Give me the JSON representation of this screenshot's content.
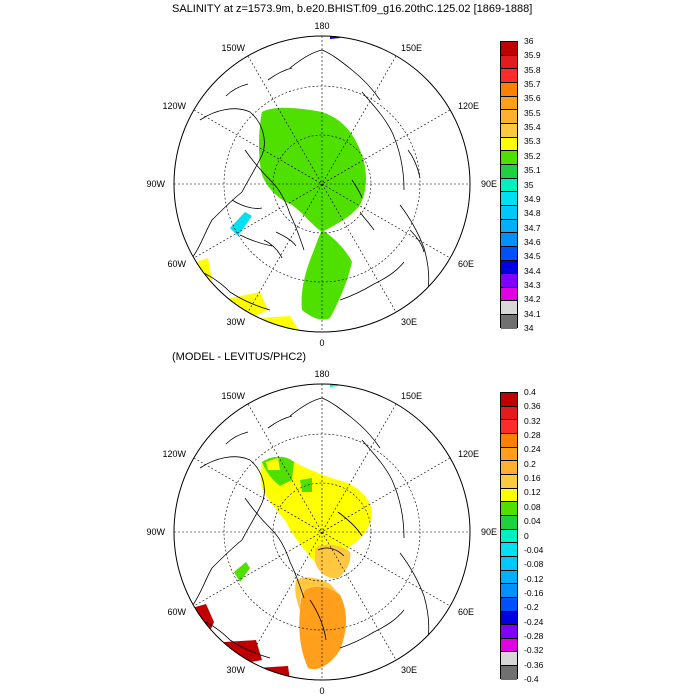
{
  "panel1": {
    "title": "SALINITY at z=1573.9m, b.e20.BHIST.f09_g16.20thC.125.02 [1869-1888]",
    "lon_labels": {
      "top": "180",
      "bottom": "0",
      "left": "90W",
      "right": "90E",
      "nw1": "150W",
      "nw2": "120W",
      "ne1": "150E",
      "ne2": "120E",
      "sw1": "60W",
      "sw2": "30W",
      "se1": "60E",
      "se2": "30E"
    },
    "colorbar": {
      "labels": [
        "36",
        "35.9",
        "35.8",
        "35.7",
        "35.6",
        "35.5",
        "35.4",
        "35.3",
        "35.2",
        "35.1",
        "35",
        "34.9",
        "34.8",
        "34.7",
        "34.6",
        "34.5",
        "34.4",
        "34.3",
        "34.2",
        "34.1",
        "34"
      ],
      "colors": [
        "#c00000",
        "#e41a1c",
        "#ff2a2a",
        "#ff7f00",
        "#ff9f1c",
        "#ffb030",
        "#ffc840",
        "#ffff00",
        "#50e000",
        "#20d040",
        "#00f0c0",
        "#00e0f0",
        "#00c8f8",
        "#00b0ff",
        "#0090ff",
        "#0050ff",
        "#0000e0",
        "#8000ff",
        "#e000e0",
        "#d8d8d8"
      ]
    }
  },
  "panel2": {
    "title": "(MODEL - LEVITUS/PHC2)",
    "lon_labels": {
      "top": "180",
      "bottom": "0",
      "left": "90W",
      "right": "90E",
      "nw1": "150W",
      "nw2": "120W",
      "ne1": "150E",
      "ne2": "120E",
      "sw1": "60W",
      "sw2": "30W",
      "se1": "60E",
      "se2": "30E"
    },
    "colorbar": {
      "labels": [
        "0.4",
        "0.36",
        "0.32",
        "0.28",
        "0.24",
        "0.2",
        "0.16",
        "0.12",
        "0.08",
        "0.04",
        "0",
        "-0.04",
        "-0.08",
        "-0.12",
        "-0.16",
        "-0.2",
        "-0.24",
        "-0.28",
        "-0.32",
        "-0.36",
        "-0.4"
      ],
      "colors": [
        "#c00000",
        "#e41a1c",
        "#ff2a2a",
        "#ff7f00",
        "#ff9f1c",
        "#ffb030",
        "#ffc840",
        "#ffff00",
        "#50e000",
        "#20d040",
        "#00f0c0",
        "#00e0f0",
        "#00c8f8",
        "#00b0ff",
        "#0090ff",
        "#0050ff",
        "#0000e0",
        "#8000ff",
        "#e000e0",
        "#d8d8d8"
      ]
    }
  },
  "colors": {
    "last_segment": "#707070",
    "frame": "#000000"
  }
}
